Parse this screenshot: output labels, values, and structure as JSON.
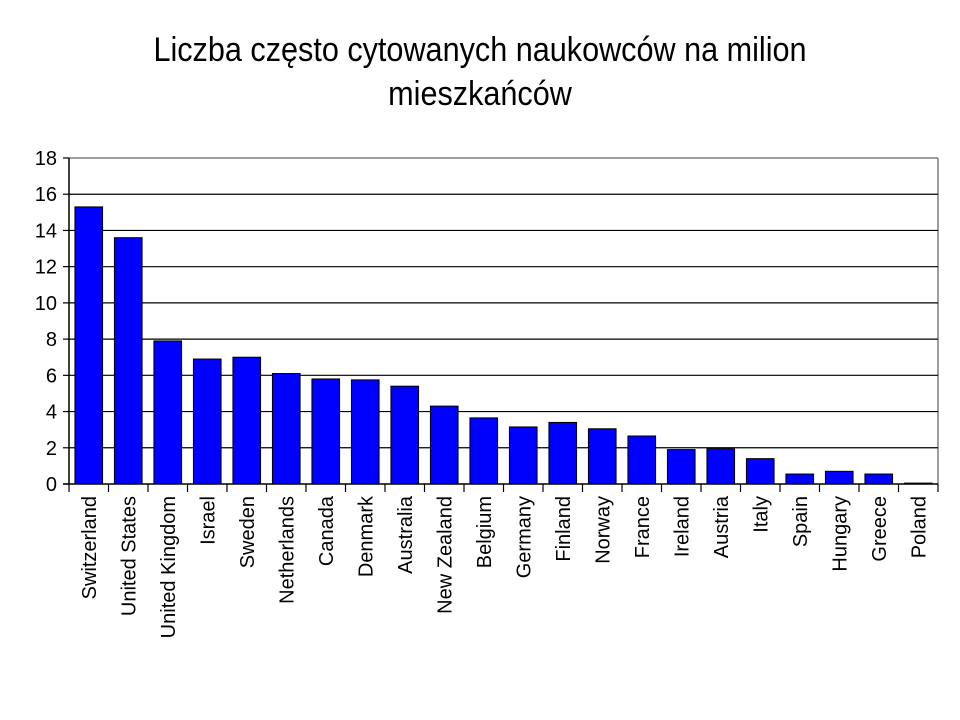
{
  "title_line1": "Liczba często cytowanych naukowców na milion",
  "title_line2": "mieszkańców",
  "chart_data": {
    "type": "bar",
    "title": "Liczba często cytowanych naukowców na milion mieszkańców",
    "xlabel": "",
    "ylabel": "",
    "ylim": [
      0,
      18
    ],
    "yticks": [
      0,
      2,
      4,
      6,
      8,
      10,
      12,
      14,
      16,
      18
    ],
    "grid": true,
    "legend": "none",
    "bar_color": "#0000FF",
    "categories": [
      "Switzerland",
      "United States",
      "United Kingdom",
      "Israel",
      "Sweden",
      "Netherlands",
      "Canada",
      "Denmark",
      "Australia",
      "New Zealand",
      "Belgium",
      "Germany",
      "Finland",
      "Norway",
      "France",
      "Ireland",
      "Austria",
      "Italy",
      "Spain",
      "Hungary",
      "Greece",
      "Poland"
    ],
    "values": [
      15.3,
      13.6,
      7.9,
      6.9,
      7.0,
      6.1,
      5.8,
      5.75,
      5.4,
      4.3,
      3.65,
      3.15,
      3.4,
      3.05,
      2.65,
      1.9,
      1.95,
      1.4,
      0.55,
      0.7,
      0.55,
      0.05
    ]
  }
}
